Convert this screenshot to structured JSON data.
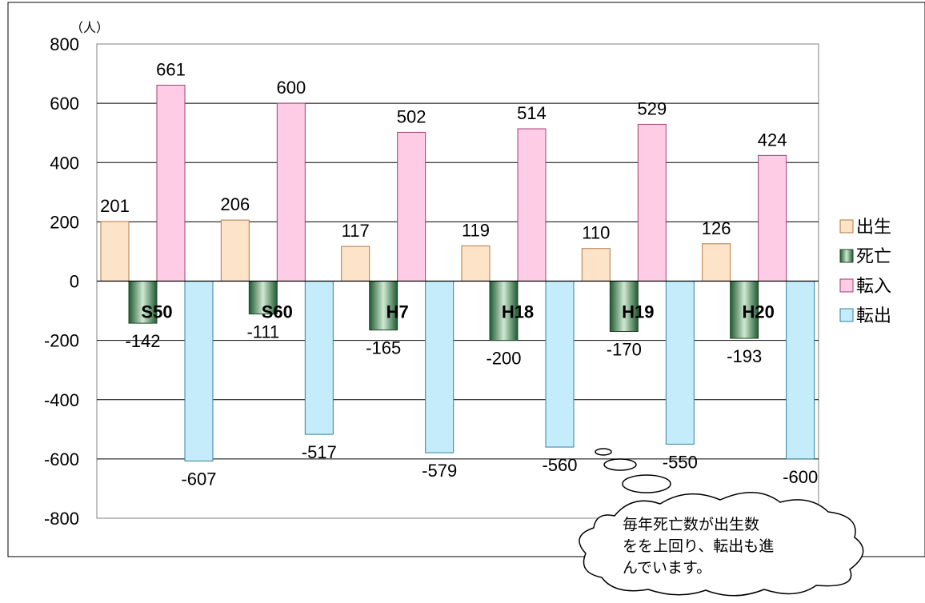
{
  "chart_data": {
    "type": "bar",
    "unit_label": "（人）",
    "categories": [
      "S50",
      "S60",
      "H7",
      "H18",
      "H19",
      "H20"
    ],
    "series": [
      {
        "name": "出生",
        "values": [
          201,
          206,
          117,
          119,
          110,
          126
        ],
        "color": "#fde3c8",
        "stroke": "#b07a45"
      },
      {
        "name": "死亡",
        "values": [
          -142,
          -111,
          -165,
          -200,
          -170,
          -193
        ],
        "color": "#3c7a4a",
        "stroke": "#1f4a2a"
      },
      {
        "name": "転入",
        "values": [
          661,
          600,
          502,
          514,
          529,
          424
        ],
        "color": "#ffcce6",
        "stroke": "#a04070"
      },
      {
        "name": "転出",
        "values": [
          -607,
          -517,
          -579,
          -560,
          -550,
          -600
        ],
        "color": "#c4ecfb",
        "stroke": "#3080a0"
      }
    ],
    "y_ticks": [
      "800",
      "600",
      "400",
      "200",
      "0",
      "-200",
      "-400",
      "-600",
      "-800"
    ],
    "ylim": [
      -800,
      800
    ],
    "grid": true,
    "legend_position": "right",
    "annotation": {
      "lines": [
        "毎年死亡数が出生数",
        "をを上回り、転出も進",
        "んでいます。"
      ]
    }
  }
}
